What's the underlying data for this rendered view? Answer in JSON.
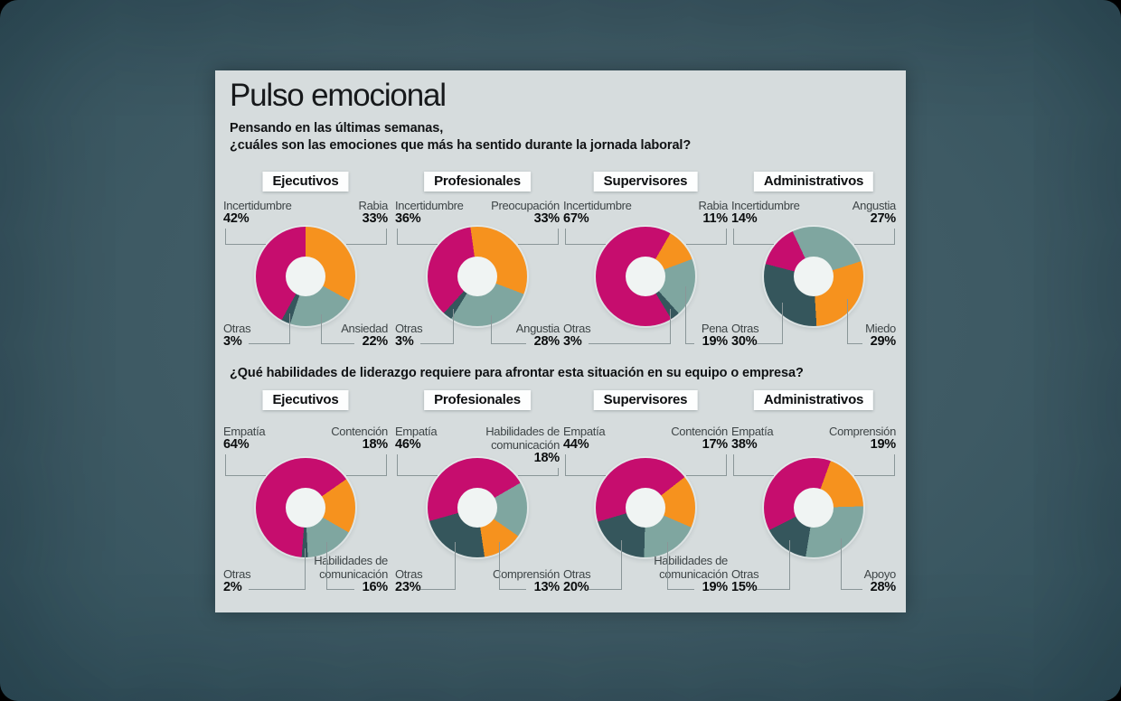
{
  "header": {
    "title": "Pulso emocional",
    "intro": "Pensando en las últimas semanas,"
  },
  "colors": {
    "magenta": "#c60d6e",
    "orange": "#f6921e",
    "teal": "#7fa6a0",
    "dark": "#35565c",
    "panel_bg": "#d6dcdd",
    "backdrop": "#3e5a64",
    "connector": "#8a9698",
    "hole": "#f0f4f3"
  },
  "chart_data": {
    "type": "pie",
    "style": "donut-grid",
    "legend_position": "around-slices",
    "rows": [
      {
        "question": "¿cuáles son las emociones que más ha sentido durante la jornada laboral?",
        "charts": [
          {
            "group": "Ejecutivos",
            "start_deg": 0,
            "slices": [
              {
                "label": "Rabia",
                "value": 33,
                "color": "orange",
                "pos": "tr"
              },
              {
                "label": "Ansiedad",
                "value": 22,
                "color": "teal",
                "pos": "br"
              },
              {
                "label": "Otras",
                "value": 3,
                "color": "dark",
                "pos": "bl"
              },
              {
                "label": "Incertidumbre",
                "value": 42,
                "color": "magenta",
                "pos": "tl"
              }
            ]
          },
          {
            "group": "Profesionales",
            "start_deg": -8,
            "slices": [
              {
                "label": "Preocupación",
                "value": 33,
                "color": "orange",
                "pos": "tr"
              },
              {
                "label": "Angustia",
                "value": 28,
                "color": "teal",
                "pos": "br"
              },
              {
                "label": "Otras",
                "value": 3,
                "color": "dark",
                "pos": "bl"
              },
              {
                "label": "Incertidumbre",
                "value": 36,
                "color": "magenta",
                "pos": "tl"
              }
            ]
          },
          {
            "group": "Supervisores",
            "start_deg": 30,
            "slices": [
              {
                "label": "Rabia",
                "value": 11,
                "color": "orange",
                "pos": "tr"
              },
              {
                "label": "Pena",
                "value": 19,
                "color": "teal",
                "pos": "br"
              },
              {
                "label": "Otras",
                "value": 3,
                "color": "dark",
                "pos": "bl"
              },
              {
                "label": "Incertidumbre",
                "value": 67,
                "color": "magenta",
                "pos": "tl"
              }
            ]
          },
          {
            "group": "Administrativos",
            "start_deg": -25,
            "slices": [
              {
                "label": "Angustia",
                "value": 27,
                "color": "teal",
                "pos": "tr"
              },
              {
                "label": "Miedo",
                "value": 29,
                "color": "orange",
                "pos": "br"
              },
              {
                "label": "Otras",
                "value": 30,
                "color": "dark",
                "pos": "bl"
              },
              {
                "label": "Incertidumbre",
                "value": 14,
                "color": "magenta",
                "pos": "tl"
              }
            ]
          }
        ]
      },
      {
        "question": "¿Qué habilidades de liderazgo requiere para afrontar esta situación en su equipo o empresa?",
        "charts": [
          {
            "group": "Ejecutivos",
            "start_deg": 55,
            "slices": [
              {
                "label": "Contención",
                "value": 18,
                "color": "orange",
                "pos": "tr"
              },
              {
                "label": "Habilidades de comunicación",
                "value": 16,
                "color": "teal",
                "pos": "br"
              },
              {
                "label": "Otras",
                "value": 2,
                "color": "dark",
                "pos": "bl"
              },
              {
                "label": "Empatía",
                "value": 64,
                "color": "magenta",
                "pos": "tl"
              }
            ]
          },
          {
            "group": "Profesionales",
            "start_deg": 60,
            "slices": [
              {
                "label": "Habilidades de comunicación",
                "value": 18,
                "color": "teal",
                "pos": "tr"
              },
              {
                "label": "Comprensión",
                "value": 13,
                "color": "orange",
                "pos": "br"
              },
              {
                "label": "Otras",
                "value": 23,
                "color": "dark",
                "pos": "bl"
              },
              {
                "label": "Empatía",
                "value": 46,
                "color": "magenta",
                "pos": "tl"
              }
            ]
          },
          {
            "group": "Supervisores",
            "start_deg": 52,
            "slices": [
              {
                "label": "Contención",
                "value": 17,
                "color": "orange",
                "pos": "tr"
              },
              {
                "label": "Habilidades de comunicación",
                "value": 19,
                "color": "teal",
                "pos": "br"
              },
              {
                "label": "Otras",
                "value": 20,
                "color": "dark",
                "pos": "bl"
              },
              {
                "label": "Empatía",
                "value": 44,
                "color": "magenta",
                "pos": "tl"
              }
            ]
          },
          {
            "group": "Administrativos",
            "start_deg": 20,
            "slices": [
              {
                "label": "Comprensión",
                "value": 19,
                "color": "orange",
                "pos": "tr"
              },
              {
                "label": "Apoyo",
                "value": 28,
                "color": "teal",
                "pos": "br"
              },
              {
                "label": "Otras",
                "value": 15,
                "color": "dark",
                "pos": "bl"
              },
              {
                "label": "Empatía",
                "value": 38,
                "color": "magenta",
                "pos": "tl"
              }
            ]
          }
        ]
      }
    ]
  }
}
